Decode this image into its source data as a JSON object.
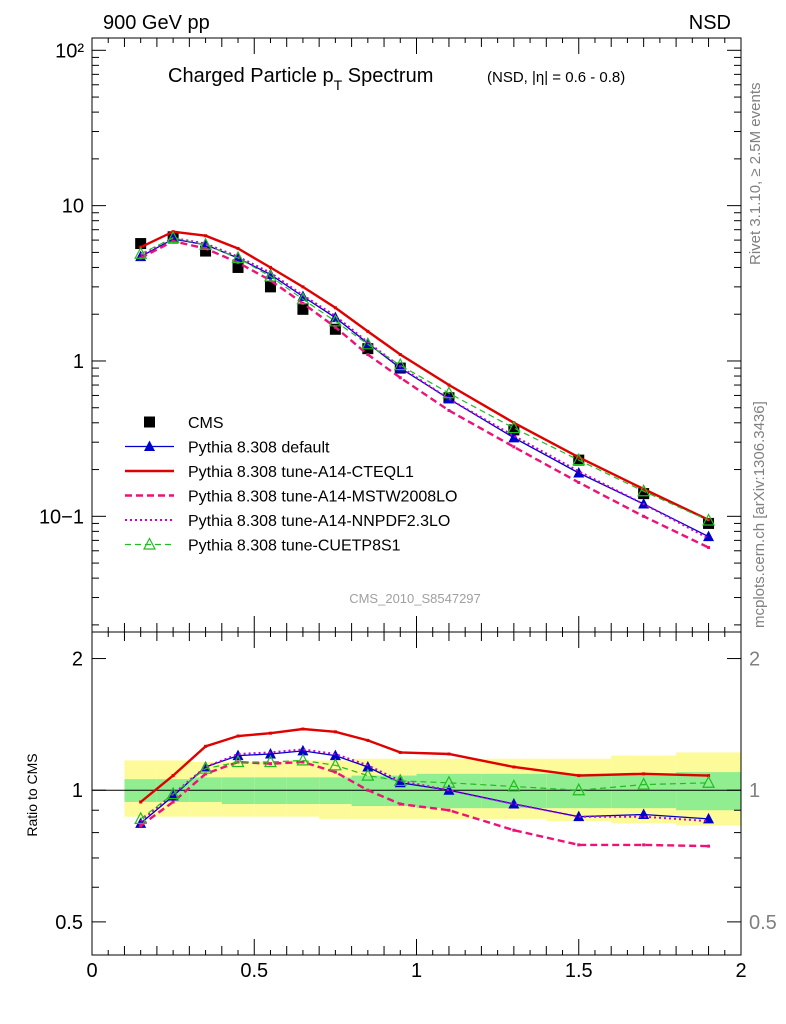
{
  "header": {
    "left": "900 GeV pp",
    "right": "NSD"
  },
  "side": {
    "rivet": "Rivet 3.1.10, ≥ 2.5M events",
    "source": "mcplots.cern.ch [arXiv:1306.3436]"
  },
  "watermark": "CMS_2010_S8547297",
  "chart_data": [
    {
      "type": "line",
      "panel": "main",
      "title_main": "Charged Particle p",
      "title_sub": "T",
      "title_rest": " Spectrum",
      "title_suffix": "(NSD, |η| = 0.6 - 0.8)",
      "yscale": "log",
      "xlim": [
        0,
        2
      ],
      "ylim": [
        0.018,
        120
      ],
      "ytick_labels": [
        "10−1",
        "1",
        "10",
        "10²"
      ],
      "legend_position": "center-left",
      "series": [
        {
          "name": "CMS",
          "style": "marker-square",
          "color": "#000000",
          "x": [
            0.15,
            0.25,
            0.35,
            0.45,
            0.55,
            0.65,
            0.75,
            0.85,
            0.95,
            1.1,
            1.3,
            1.5,
            1.7,
            1.9
          ],
          "values": [
            5.7,
            6.3,
            5.1,
            4.0,
            3.0,
            2.15,
            1.6,
            1.2,
            0.9,
            0.58,
            0.36,
            0.23,
            0.14,
            0.09
          ]
        },
        {
          "name": "Pythia 8.308 default",
          "style": "solid-triangle",
          "color": "#0000cc",
          "x": [
            0.15,
            0.25,
            0.35,
            0.45,
            0.55,
            0.65,
            0.75,
            0.85,
            0.95,
            1.1,
            1.3,
            1.5,
            1.7,
            1.9
          ],
          "values": [
            4.7,
            6.1,
            5.6,
            4.6,
            3.6,
            2.6,
            1.9,
            1.3,
            0.9,
            0.57,
            0.32,
            0.19,
            0.12,
            0.074
          ]
        },
        {
          "name": "Pythia 8.308 tune-A14-CTEQL1",
          "style": "solid-thick",
          "color": "#e00000",
          "x": [
            0.15,
            0.25,
            0.35,
            0.45,
            0.55,
            0.65,
            0.75,
            0.85,
            0.95,
            1.1,
            1.3,
            1.5,
            1.7,
            1.9
          ],
          "values": [
            5.4,
            6.8,
            6.4,
            5.3,
            4.0,
            3.0,
            2.2,
            1.55,
            1.1,
            0.7,
            0.4,
            0.24,
            0.15,
            0.095
          ]
        },
        {
          "name": "Pythia 8.308 tune-A14-MSTW2008LO",
          "style": "dashed-thick",
          "color": "#ee1177",
          "x": [
            0.15,
            0.25,
            0.35,
            0.45,
            0.55,
            0.65,
            0.75,
            0.85,
            0.95,
            1.1,
            1.3,
            1.5,
            1.7,
            1.9
          ],
          "values": [
            4.6,
            5.9,
            5.3,
            4.3,
            3.3,
            2.35,
            1.65,
            1.1,
            0.78,
            0.48,
            0.28,
            0.165,
            0.1,
            0.063
          ]
        },
        {
          "name": "Pythia 8.308 tune-A14-NNPDF2.3LO",
          "style": "dotted",
          "color": "#cc00cc",
          "x": [
            0.15,
            0.25,
            0.35,
            0.45,
            0.55,
            0.65,
            0.75,
            0.85,
            0.95,
            1.1,
            1.3,
            1.5,
            1.7,
            1.9
          ],
          "values": [
            4.8,
            6.2,
            5.7,
            4.7,
            3.7,
            2.65,
            1.95,
            1.32,
            0.92,
            0.57,
            0.33,
            0.195,
            0.12,
            0.072
          ]
        },
        {
          "name": "Pythia 8.308 tune-CUETP8S1",
          "style": "dashed-open-triangle",
          "color": "#22bb22",
          "x": [
            0.15,
            0.25,
            0.35,
            0.45,
            0.55,
            0.65,
            0.75,
            0.85,
            0.95,
            1.1,
            1.3,
            1.5,
            1.7,
            1.9
          ],
          "values": [
            4.9,
            6.2,
            5.6,
            4.6,
            3.5,
            2.5,
            1.8,
            1.28,
            0.94,
            0.62,
            0.37,
            0.23,
            0.145,
            0.094
          ]
        }
      ]
    },
    {
      "type": "line",
      "panel": "ratio",
      "ylabel": "Ratio to CMS",
      "xlim": [
        0,
        2
      ],
      "ylim": [
        0.42,
        2.3
      ],
      "yscale": "log",
      "xtick_labels": [
        "0",
        "0.5",
        "1",
        "1.5",
        "2"
      ],
      "ytick_labels": [
        "0.5",
        "1",
        "2"
      ],
      "bands": {
        "x_edges": [
          0.1,
          0.2,
          0.3,
          0.4,
          0.5,
          0.6,
          0.7,
          0.8,
          0.9,
          1.0,
          1.2,
          1.4,
          1.6,
          1.8,
          2.0
        ],
        "inner": [
          [
            0.94,
            1.06
          ],
          [
            0.94,
            1.06
          ],
          [
            0.94,
            1.07
          ],
          [
            0.93,
            1.07
          ],
          [
            0.93,
            1.07
          ],
          [
            0.93,
            1.07
          ],
          [
            0.93,
            1.07
          ],
          [
            0.92,
            1.08
          ],
          [
            0.92,
            1.08
          ],
          [
            0.91,
            1.09
          ],
          [
            0.91,
            1.09
          ],
          [
            0.91,
            1.09
          ],
          [
            0.91,
            1.09
          ],
          [
            0.9,
            1.1
          ]
        ],
        "outer": [
          [
            0.87,
            1.17
          ],
          [
            0.87,
            1.17
          ],
          [
            0.87,
            1.16
          ],
          [
            0.87,
            1.16
          ],
          [
            0.87,
            1.16
          ],
          [
            0.87,
            1.17
          ],
          [
            0.86,
            1.17
          ],
          [
            0.86,
            1.18
          ],
          [
            0.86,
            1.18
          ],
          [
            0.86,
            1.18
          ],
          [
            0.86,
            1.18
          ],
          [
            0.85,
            1.18
          ],
          [
            0.84,
            1.2
          ],
          [
            0.83,
            1.22
          ]
        ]
      },
      "series": [
        {
          "name": "Pythia 8.308 default",
          "style": "solid-triangle",
          "color": "#0000cc",
          "x": [
            0.15,
            0.25,
            0.35,
            0.45,
            0.55,
            0.65,
            0.75,
            0.85,
            0.95,
            1.1,
            1.3,
            1.5,
            1.7,
            1.9
          ],
          "values": [
            0.84,
            0.97,
            1.13,
            1.2,
            1.21,
            1.23,
            1.2,
            1.13,
            1.04,
            1.0,
            0.93,
            0.87,
            0.88,
            0.86
          ]
        },
        {
          "name": "Pythia 8.308 tune-A14-CTEQL1",
          "style": "solid-thick",
          "color": "#e00000",
          "x": [
            0.15,
            0.25,
            0.35,
            0.45,
            0.55,
            0.65,
            0.75,
            0.85,
            0.95,
            1.1,
            1.3,
            1.5,
            1.7,
            1.9
          ],
          "values": [
            0.94,
            1.08,
            1.26,
            1.33,
            1.35,
            1.38,
            1.36,
            1.3,
            1.22,
            1.21,
            1.13,
            1.08,
            1.09,
            1.08
          ]
        },
        {
          "name": "Pythia 8.308 tune-A14-MSTW2008LO",
          "style": "dashed-thick",
          "color": "#ee1177",
          "x": [
            0.15,
            0.25,
            0.35,
            0.45,
            0.55,
            0.65,
            0.75,
            0.85,
            0.95,
            1.1,
            1.3,
            1.5,
            1.7,
            1.9
          ],
          "values": [
            0.83,
            0.94,
            1.09,
            1.16,
            1.15,
            1.16,
            1.1,
            1.0,
            0.93,
            0.9,
            0.81,
            0.75,
            0.75,
            0.745
          ]
        },
        {
          "name": "Pythia 8.308 tune-A14-NNPDF2.3LO",
          "style": "dotted",
          "color": "#cc00cc",
          "x": [
            0.15,
            0.25,
            0.35,
            0.45,
            0.55,
            0.65,
            0.75,
            0.85,
            0.95,
            1.1,
            1.3,
            1.5,
            1.7,
            1.9
          ],
          "values": [
            0.85,
            0.98,
            1.13,
            1.21,
            1.22,
            1.24,
            1.21,
            1.14,
            1.05,
            1.0,
            0.93,
            0.87,
            0.87,
            0.85
          ]
        },
        {
          "name": "Pythia 8.308 tune-CUETP8S1",
          "style": "dashed-open-triangle",
          "color": "#22bb22",
          "x": [
            0.15,
            0.25,
            0.35,
            0.45,
            0.55,
            0.65,
            0.75,
            0.85,
            0.95,
            1.1,
            1.3,
            1.5,
            1.7,
            1.9
          ],
          "values": [
            0.86,
            0.98,
            1.12,
            1.16,
            1.16,
            1.17,
            1.14,
            1.08,
            1.05,
            1.04,
            1.02,
            1.0,
            1.03,
            1.04
          ]
        }
      ]
    }
  ]
}
